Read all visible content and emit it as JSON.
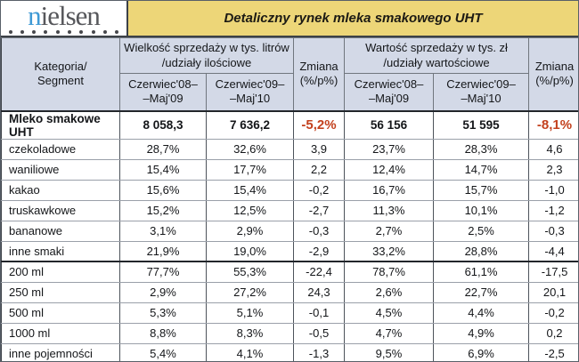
{
  "logo": {
    "brand": "nielsen",
    "accent_letter": "n",
    "rest": "ielsen",
    "dots_count": 10,
    "accent_color": "#3f9ad5",
    "text_color": "#56575b"
  },
  "colors": {
    "title_bg": "#edd678",
    "header_bg": "#d3d9e7",
    "negative_accent": "#c3411e"
  },
  "chart_data": {
    "type": "table",
    "title": "Detaliczny rynek mleka smakowego UHT",
    "header": {
      "category": "Kategoria/\nSegment",
      "volume_group": "Wielkość sprzedaży w tys. litrów\n/udziały ilościowe",
      "value_group": "Wartość sprzedaży w tys. zł\n/udziały wartościowe",
      "periods": [
        "Czerwiec'08–\n–Maj'09",
        "Czerwiec'09–\n–Maj'10"
      ],
      "change": "Zmiana\n(%/p%)"
    },
    "rows": [
      {
        "label": "Mleko smakowe UHT",
        "cells": [
          "8 058,3",
          "7 636,2",
          "-5,2%",
          "56 156",
          "51 595",
          "-8,1%"
        ],
        "emphasis": true,
        "section_start": false
      },
      {
        "label": "czekoladowe",
        "cells": [
          "28,7%",
          "32,6%",
          "3,9",
          "23,7%",
          "28,3%",
          "4,6"
        ],
        "emphasis": false,
        "section_start": false
      },
      {
        "label": "waniliowe",
        "cells": [
          "15,4%",
          "17,7%",
          "2,2",
          "12,4%",
          "14,7%",
          "2,3"
        ],
        "emphasis": false,
        "section_start": false
      },
      {
        "label": "kakao",
        "cells": [
          "15,6%",
          "15,4%",
          "-0,2",
          "16,7%",
          "15,7%",
          "-1,0"
        ],
        "emphasis": false,
        "section_start": false
      },
      {
        "label": "truskawkowe",
        "cells": [
          "15,2%",
          "12,5%",
          "-2,7",
          "11,3%",
          "10,1%",
          "-1,2"
        ],
        "emphasis": false,
        "section_start": false
      },
      {
        "label": "bananowe",
        "cells": [
          "3,1%",
          "2,9%",
          "-0,3",
          "2,7%",
          "2,5%",
          "-0,3"
        ],
        "emphasis": false,
        "section_start": false
      },
      {
        "label": "inne smaki",
        "cells": [
          "21,9%",
          "19,0%",
          "-2,9",
          "33,2%",
          "28,8%",
          "-4,4"
        ],
        "emphasis": false,
        "section_start": false
      },
      {
        "label": "200 ml",
        "cells": [
          "77,7%",
          "55,3%",
          "-22,4",
          "78,7%",
          "61,1%",
          "-17,5"
        ],
        "emphasis": false,
        "section_start": true
      },
      {
        "label": "250 ml",
        "cells": [
          "2,9%",
          "27,2%",
          "24,3",
          "2,6%",
          "22,7%",
          "20,1"
        ],
        "emphasis": false,
        "section_start": false
      },
      {
        "label": "500 ml",
        "cells": [
          "5,3%",
          "5,1%",
          "-0,1",
          "4,5%",
          "4,4%",
          "-0,2"
        ],
        "emphasis": false,
        "section_start": false
      },
      {
        "label": "1000 ml",
        "cells": [
          "8,8%",
          "8,3%",
          "-0,5",
          "4,7%",
          "4,9%",
          "0,2"
        ],
        "emphasis": false,
        "section_start": false
      },
      {
        "label": "inne pojemności",
        "cells": [
          "5,4%",
          "4,1%",
          "-1,3",
          "9,5%",
          "6,9%",
          "-2,5"
        ],
        "emphasis": false,
        "section_start": false
      }
    ]
  }
}
